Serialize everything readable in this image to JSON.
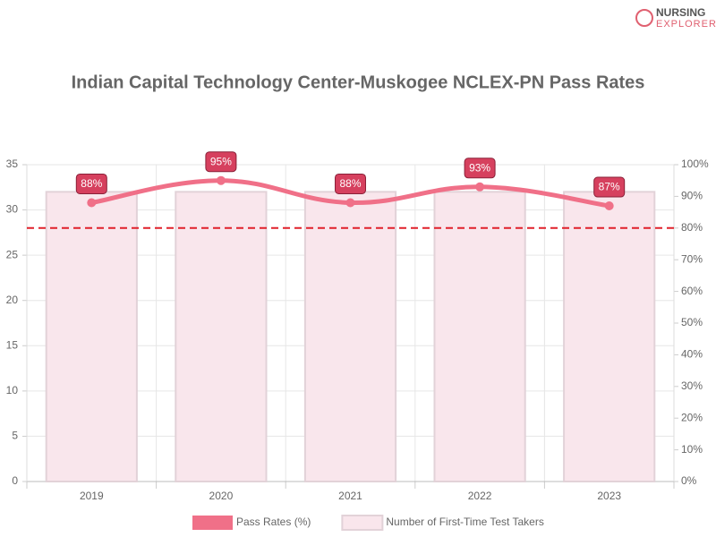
{
  "brand": {
    "line1": "NURSING",
    "line2": "EXPLORER"
  },
  "chart_data": {
    "type": "combo",
    "title": "Indian Capital Technology Center-Muskogee NCLEX-PN Pass Rates",
    "categories": [
      "2019",
      "2020",
      "2021",
      "2022",
      "2023"
    ],
    "series": [
      {
        "name": "Pass Rates (%)",
        "type": "line",
        "axis": "y2",
        "color": "#f07088",
        "values": [
          88,
          95,
          88,
          93,
          87
        ],
        "value_labels": [
          "88%",
          "95%",
          "88%",
          "93%",
          "87%"
        ]
      },
      {
        "name": "Number of First-Time Test Takers",
        "type": "bar",
        "color": "#f9e6ec",
        "values": [
          32,
          32,
          32,
          32,
          32
        ]
      }
    ],
    "ylim": [
      0,
      35
    ],
    "yticks": [
      0,
      5,
      10,
      15,
      20,
      25,
      30,
      35
    ],
    "y2lim": [
      0,
      100
    ],
    "y2ticks": [
      {
        "value": 0,
        "label": "0%"
      },
      {
        "value": 10,
        "label": "10%"
      },
      {
        "value": 20,
        "label": "20%"
      },
      {
        "value": 30,
        "label": "30%"
      },
      {
        "value": 40,
        "label": "40%"
      },
      {
        "value": 50,
        "label": "50%"
      },
      {
        "value": 60,
        "label": "60%"
      },
      {
        "value": 70,
        "label": "70%"
      },
      {
        "value": 80,
        "label": "80%"
      },
      {
        "value": 90,
        "label": "90%"
      },
      {
        "value": 100,
        "label": "100%"
      }
    ],
    "reference_line": {
      "value": 80,
      "axis": "y2",
      "color": "#e0202a"
    },
    "grid": true,
    "legend": "bottom"
  }
}
